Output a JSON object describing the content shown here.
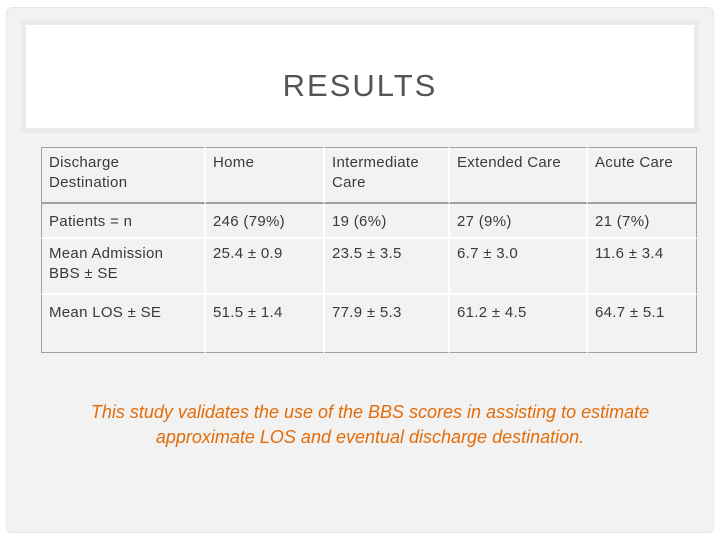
{
  "slide": {
    "title": "RESULTS",
    "conclusion": "This study validates the use of the BBS scores in assisting to estimate approximate LOS and eventual discharge destination."
  },
  "table": {
    "header": [
      "Discharge Destination",
      "Home",
      "Intermediate Care",
      "Extended Care",
      "Acute Care"
    ],
    "rows": [
      [
        "Patients = n",
        "246 (79%)",
        "19 (6%)",
        "27 (9%)",
        "21 (7%)"
      ],
      [
        "Mean Admission BBS ± SE",
        "25.4 ± 0.9",
        "23.5 ± 3.5",
        "6.7 ± 3.0",
        "11.6 ± 3.4"
      ],
      [
        "Mean LOS ± SE",
        "51.5 ± 1.4",
        "77.9 ± 5.3",
        "61.2 ± 4.5",
        "64.7 ± 5.1"
      ]
    ]
  },
  "colors": {
    "conclusion_text": "#e36c09",
    "title_text": "#555555",
    "row_background": "#f2f2f2"
  }
}
